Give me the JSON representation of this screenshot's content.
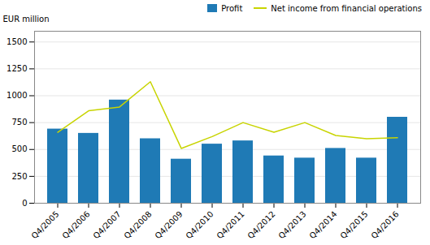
{
  "chart_data": {
    "type": "bar",
    "categories": [
      "Q4/2005",
      "Q4/2006",
      "Q4/2007",
      "Q4/2008",
      "Q4/2009",
      "Q4/2010",
      "Q4/2011",
      "Q4/2012",
      "Q4/2013",
      "Q4/2014",
      "Q4/2015",
      "Q4/2016"
    ],
    "series": [
      {
        "name": "Profit",
        "type": "bar",
        "color": "#1f7ab5",
        "values": [
          690,
          650,
          960,
          600,
          410,
          550,
          580,
          440,
          420,
          510,
          420,
          800
        ]
      },
      {
        "name": "Net income from financial operations",
        "type": "line",
        "color": "#c8d400",
        "values": [
          660,
          860,
          895,
          1130,
          510,
          620,
          750,
          660,
          750,
          630,
          600,
          610
        ]
      }
    ],
    "ylabel": "EUR million",
    "ylim": [
      0,
      1600
    ],
    "yticks": [
      0,
      250,
      500,
      750,
      1000,
      1250,
      1500
    ],
    "grid": true,
    "legend": "upper right"
  }
}
